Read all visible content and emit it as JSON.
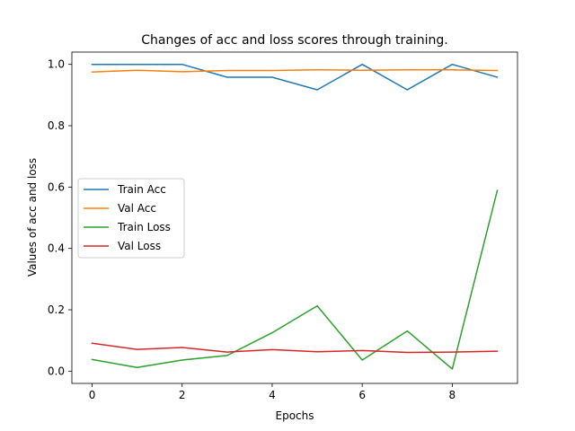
{
  "chart_data": {
    "type": "line",
    "title": "Changes of acc and loss scores through training.",
    "xlabel": "Epochs",
    "ylabel": "Values of acc and loss",
    "xlim": [
      -0.45,
      9.45
    ],
    "ylim": [
      -0.04,
      1.04
    ],
    "xticks": [
      0,
      2,
      4,
      6,
      8
    ],
    "xtick_labels": [
      "0",
      "2",
      "4",
      "6",
      "8"
    ],
    "yticks": [
      0.0,
      0.2,
      0.4,
      0.6,
      0.8,
      1.0
    ],
    "ytick_labels": [
      "0.0",
      "0.2",
      "0.4",
      "0.6",
      "0.8",
      "1.0"
    ],
    "grid": false,
    "legend_position": "center-left",
    "x": [
      0,
      1,
      2,
      3,
      4,
      5,
      6,
      7,
      8,
      9
    ],
    "series": [
      {
        "name": "Train Acc",
        "color": "#1f77b4",
        "values": [
          1.0,
          1.0,
          1.0,
          0.958,
          0.958,
          0.917,
          1.0,
          0.917,
          1.0,
          0.958
        ]
      },
      {
        "name": "Val Acc",
        "color": "#ff7f0e",
        "values": [
          0.975,
          0.981,
          0.976,
          0.98,
          0.98,
          0.982,
          0.981,
          0.982,
          0.982,
          0.98
        ]
      },
      {
        "name": "Train Loss",
        "color": "#2ca02c",
        "values": [
          0.038,
          0.012,
          0.036,
          0.051,
          0.125,
          0.213,
          0.036,
          0.131,
          0.007,
          0.589
        ]
      },
      {
        "name": "Val Loss",
        "color": "#d62728",
        "values": [
          0.091,
          0.071,
          0.077,
          0.062,
          0.07,
          0.063,
          0.067,
          0.061,
          0.062,
          0.065
        ]
      }
    ]
  }
}
